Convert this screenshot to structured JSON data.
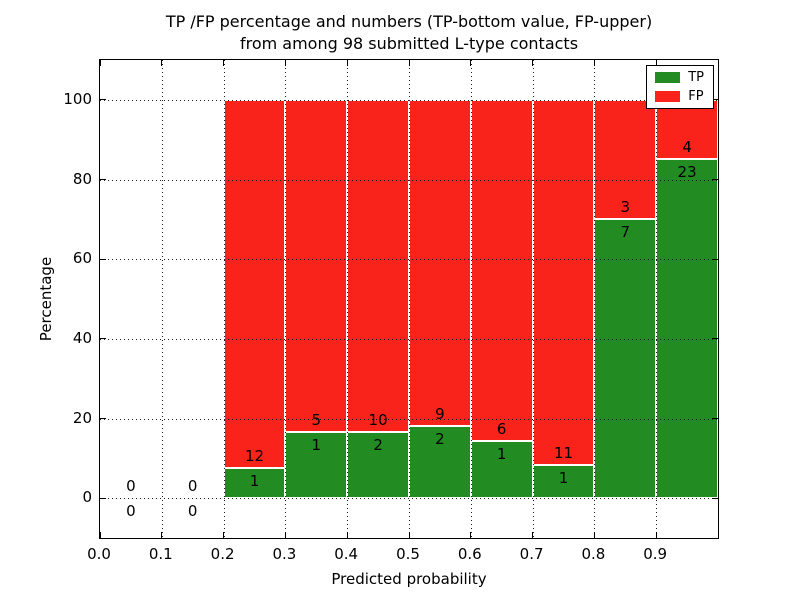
{
  "chart_data": {
    "type": "bar",
    "stacked": true,
    "title_line1": "TP /FP percentage and numbers (TP-bottom value, FP-upper)",
    "title_line2": "from among 98 submitted L-type contacts",
    "total_submitted": 98,
    "xlabel": "Predicted probability",
    "ylabel": "Percentage",
    "xlim": [
      0.0,
      1.0
    ],
    "ylim": [
      -10,
      110
    ],
    "grid": "dotted",
    "xticks": {
      "values": [
        0.0,
        0.1,
        0.2,
        0.3,
        0.4,
        0.5,
        0.6,
        0.7,
        0.8,
        0.9,
        1.0
      ],
      "labels": [
        "0.0",
        "0.1",
        "0.2",
        "0.3",
        "0.4",
        "0.5",
        "0.6",
        "0.7",
        "0.8",
        "0.9",
        ""
      ]
    },
    "yticks": {
      "values": [
        0,
        20,
        40,
        60,
        80,
        100
      ],
      "labels": [
        "0",
        "20",
        "40",
        "60",
        "80",
        "100"
      ]
    },
    "series_colors": {
      "tp": "#228b22",
      "fp": "#fa231c"
    },
    "legend": {
      "location": "upper-right",
      "entries": [
        {
          "label": "TP",
          "color": "#228b22"
        },
        {
          "label": "FP",
          "color": "#fa231c"
        }
      ]
    },
    "bins": [
      {
        "x0": 0.0,
        "x1": 0.1,
        "tp_count": 0,
        "fp_count": 0,
        "tp_pct": 0.0,
        "fp_pct": 0.0
      },
      {
        "x0": 0.1,
        "x1": 0.2,
        "tp_count": 0,
        "fp_count": 0,
        "tp_pct": 0.0,
        "fp_pct": 0.0
      },
      {
        "x0": 0.2,
        "x1": 0.3,
        "tp_count": 1,
        "fp_count": 12,
        "tp_pct": 7.69,
        "fp_pct": 92.31
      },
      {
        "x0": 0.3,
        "x1": 0.4,
        "tp_count": 1,
        "fp_count": 5,
        "tp_pct": 16.67,
        "fp_pct": 83.33
      },
      {
        "x0": 0.4,
        "x1": 0.5,
        "tp_count": 2,
        "fp_count": 10,
        "tp_pct": 16.67,
        "fp_pct": 83.33
      },
      {
        "x0": 0.5,
        "x1": 0.6,
        "tp_count": 2,
        "fp_count": 9,
        "tp_pct": 18.18,
        "fp_pct": 81.82
      },
      {
        "x0": 0.6,
        "x1": 0.7,
        "tp_count": 1,
        "fp_count": 6,
        "tp_pct": 14.29,
        "fp_pct": 85.71
      },
      {
        "x0": 0.7,
        "x1": 0.8,
        "tp_count": 1,
        "fp_count": 11,
        "tp_pct": 8.33,
        "fp_pct": 91.67
      },
      {
        "x0": 0.8,
        "x1": 0.9,
        "tp_count": 7,
        "fp_count": 3,
        "tp_pct": 70.0,
        "fp_pct": 30.0
      },
      {
        "x0": 0.9,
        "x1": 1.0,
        "tp_count": 23,
        "fp_count": 4,
        "tp_pct": 85.19,
        "fp_pct": 14.81
      }
    ]
  }
}
